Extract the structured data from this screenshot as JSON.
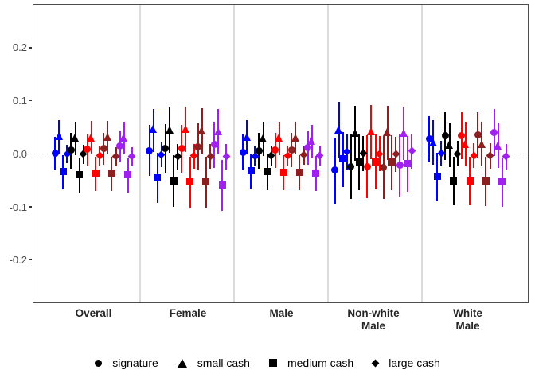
{
  "chart_data": {
    "type": "pointrange",
    "title": "",
    "xlabel": "",
    "ylabel": "",
    "ylim": [
      -0.28,
      0.28
    ],
    "grid": false,
    "zero_reference_line": 0.0,
    "legend_position": "bottom",
    "y_axis": {
      "ticks": [
        0.2,
        0.1,
        0.0,
        -0.1,
        -0.2
      ],
      "labels": [
        "0.2",
        "0.1",
        "0.0",
        "-0.1",
        "-0.2"
      ]
    },
    "value_format": "[estimate, ci_low, ci_high]",
    "shape_order": [
      "circle",
      "triangle",
      "square",
      "diamond"
    ],
    "shape_labels": [
      "signature",
      "small cash",
      "medium cash",
      "large cash"
    ],
    "colors": [
      "#0000FF",
      "#000000",
      "#FF0000",
      "#8B2020",
      "#A020F0"
    ],
    "color_names": [
      "blue",
      "black",
      "red",
      "dark-red",
      "purple"
    ],
    "legend": {
      "items": [
        {
          "shape": "circle",
          "label": "signature"
        },
        {
          "shape": "triangle",
          "label": "small cash"
        },
        {
          "shape": "square",
          "label": "medium cash"
        },
        {
          "shape": "diamond",
          "label": "large cash"
        }
      ]
    },
    "facets": [
      {
        "name": "Overall",
        "label_lines": [
          "Overall"
        ],
        "series": [
          [
            [
              0.001,
              -0.031,
              0.032
            ],
            [
              0.034,
              0.0,
              0.064
            ],
            [
              -0.034,
              -0.067,
              -0.002
            ],
            [
              0.0,
              -0.018,
              0.017
            ]
          ],
          [
            [
              0.007,
              -0.028,
              0.04
            ],
            [
              0.031,
              -0.003,
              0.061
            ],
            [
              -0.039,
              -0.074,
              -0.008
            ],
            [
              -0.001,
              -0.019,
              0.017
            ]
          ],
          [
            [
              0.009,
              -0.022,
              0.038
            ],
            [
              0.031,
              0.0,
              0.062
            ],
            [
              -0.037,
              -0.07,
              -0.006
            ],
            [
              -0.004,
              -0.022,
              0.014
            ]
          ],
          [
            [
              0.01,
              -0.02,
              0.04
            ],
            [
              0.032,
              0.001,
              0.062
            ],
            [
              -0.037,
              -0.07,
              -0.005
            ],
            [
              -0.005,
              -0.023,
              0.013
            ]
          ],
          [
            [
              0.014,
              -0.016,
              0.044
            ],
            [
              0.031,
              0.001,
              0.061
            ],
            [
              -0.04,
              -0.073,
              -0.008
            ],
            [
              -0.005,
              -0.023,
              0.013
            ]
          ]
        ]
      },
      {
        "name": "Female",
        "label_lines": [
          "Female"
        ],
        "series": [
          [
            [
              0.006,
              -0.042,
              0.054
            ],
            [
              0.047,
              0.004,
              0.084
            ],
            [
              -0.045,
              -0.093,
              0.002
            ],
            [
              -0.002,
              -0.025,
              0.021
            ]
          ],
          [
            [
              0.01,
              -0.036,
              0.056
            ],
            [
              0.046,
              0.002,
              0.088
            ],
            [
              -0.051,
              -0.1,
              -0.003
            ],
            [
              -0.005,
              -0.029,
              0.019
            ]
          ],
          [
            [
              0.01,
              -0.035,
              0.054
            ],
            [
              0.047,
              0.004,
              0.089
            ],
            [
              -0.053,
              -0.101,
              -0.006
            ],
            [
              -0.004,
              -0.028,
              0.019
            ]
          ],
          [
            [
              0.013,
              -0.031,
              0.057
            ],
            [
              0.044,
              0.001,
              0.086
            ],
            [
              -0.053,
              -0.102,
              -0.006
            ],
            [
              -0.005,
              -0.028,
              0.018
            ]
          ],
          [
            [
              0.017,
              -0.027,
              0.06
            ],
            [
              0.043,
              0.0,
              0.085
            ],
            [
              -0.059,
              -0.107,
              -0.012
            ],
            [
              -0.005,
              -0.029,
              0.018
            ]
          ]
        ]
      },
      {
        "name": "Male",
        "label_lines": [
          "Male"
        ],
        "series": [
          [
            [
              0.003,
              -0.03,
              0.036
            ],
            [
              0.032,
              0.0,
              0.063
            ],
            [
              -0.032,
              -0.065,
              0.0
            ],
            [
              -0.005,
              -0.024,
              0.014
            ]
          ],
          [
            [
              0.006,
              -0.028,
              0.039
            ],
            [
              0.029,
              -0.004,
              0.06
            ],
            [
              -0.034,
              -0.068,
              -0.001
            ],
            [
              -0.003,
              -0.022,
              0.016
            ]
          ],
          [
            [
              0.007,
              -0.026,
              0.039
            ],
            [
              0.03,
              -0.002,
              0.061
            ],
            [
              -0.035,
              -0.069,
              -0.002
            ],
            [
              -0.003,
              -0.022,
              0.015
            ]
          ],
          [
            [
              0.007,
              -0.025,
              0.04
            ],
            [
              0.03,
              -0.001,
              0.061
            ],
            [
              -0.035,
              -0.068,
              -0.002
            ],
            [
              -0.002,
              -0.021,
              0.016
            ]
          ],
          [
            [
              0.011,
              -0.021,
              0.043
            ],
            [
              0.024,
              -0.008,
              0.055
            ],
            [
              -0.036,
              -0.07,
              -0.004
            ],
            [
              -0.003,
              -0.022,
              0.015
            ]
          ]
        ]
      },
      {
        "name": "Non-white Male",
        "label_lines": [
          "Non-white",
          "Male"
        ],
        "series": [
          [
            [
              -0.031,
              -0.094,
              0.031
            ],
            [
              0.046,
              -0.008,
              0.098
            ],
            [
              -0.01,
              -0.062,
              0.041
            ],
            [
              0.004,
              -0.03,
              0.038
            ]
          ],
          [
            [
              -0.024,
              -0.085,
              0.036
            ],
            [
              0.039,
              -0.013,
              0.09
            ],
            [
              -0.015,
              -0.068,
              0.036
            ],
            [
              0.001,
              -0.033,
              0.034
            ]
          ],
          [
            [
              -0.025,
              -0.084,
              0.035
            ],
            [
              0.042,
              -0.01,
              0.092
            ],
            [
              -0.015,
              -0.067,
              0.036
            ],
            [
              0.0,
              -0.033,
              0.033
            ]
          ],
          [
            [
              -0.026,
              -0.085,
              0.034
            ],
            [
              0.041,
              -0.011,
              0.091
            ],
            [
              -0.016,
              -0.068,
              0.035
            ],
            [
              -0.001,
              -0.034,
              0.032
            ]
          ],
          [
            [
              -0.022,
              -0.081,
              0.038
            ],
            [
              0.039,
              -0.012,
              0.089
            ],
            [
              -0.019,
              -0.071,
              0.033
            ],
            [
              0.005,
              -0.028,
              0.038
            ]
          ]
        ]
      },
      {
        "name": "White Male",
        "label_lines": [
          "White",
          "Male"
        ],
        "series": [
          [
            [
              0.028,
              -0.016,
              0.071
            ],
            [
              0.022,
              -0.02,
              0.063
            ],
            [
              -0.043,
              -0.089,
              0.002
            ],
            [
              0.001,
              -0.023,
              0.025
            ]
          ],
          [
            [
              0.034,
              -0.011,
              0.078
            ],
            [
              0.017,
              -0.025,
              0.059
            ],
            [
              -0.051,
              -0.097,
              -0.005
            ],
            [
              0.0,
              -0.024,
              0.024
            ]
          ],
          [
            [
              0.034,
              -0.01,
              0.078
            ],
            [
              0.019,
              -0.023,
              0.06
            ],
            [
              -0.051,
              -0.097,
              -0.005
            ],
            [
              -0.003,
              -0.027,
              0.02
            ]
          ],
          [
            [
              0.035,
              -0.009,
              0.079
            ],
            [
              0.019,
              -0.023,
              0.06
            ],
            [
              -0.051,
              -0.098,
              -0.005
            ],
            [
              -0.004,
              -0.028,
              0.02
            ]
          ],
          [
            [
              0.04,
              -0.004,
              0.084
            ],
            [
              0.016,
              -0.026,
              0.057
            ],
            [
              -0.053,
              -0.1,
              -0.007
            ],
            [
              -0.005,
              -0.029,
              0.019
            ]
          ]
        ]
      }
    ]
  }
}
